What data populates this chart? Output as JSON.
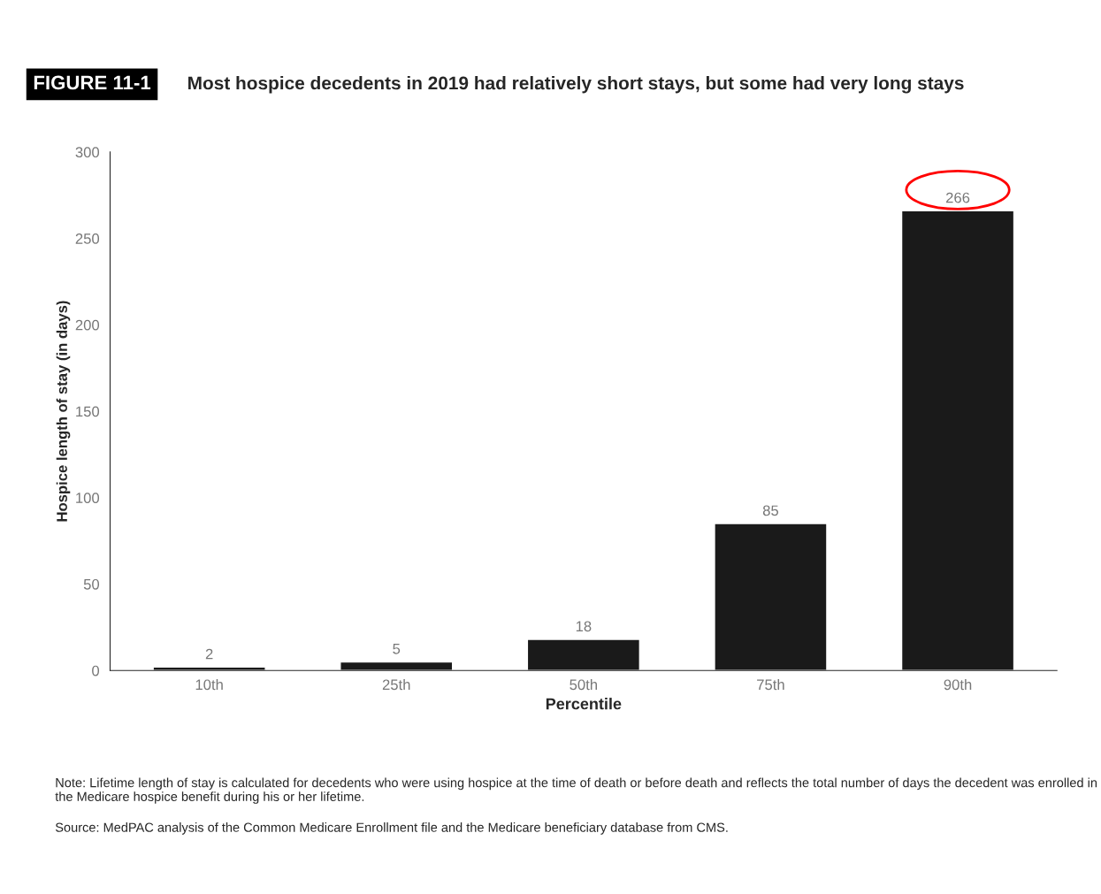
{
  "chart_data": {
    "type": "bar",
    "subtitle": "FIGURE 11-1",
    "title": "Most hospice decedents in 2019 had relatively short stays, but some had very long stays",
    "xlabel": "Percentile",
    "ylabel": "Hospice length of stay (in days)",
    "categories": [
      "10th",
      "25th",
      "50th",
      "75th",
      "90th"
    ],
    "values": [
      2,
      5,
      18,
      85,
      266
    ],
    "color": "#1a1a1a",
    "data_labels": true,
    "ylim": [
      0,
      300
    ],
    "yticks": [
      0,
      50,
      100,
      150,
      200,
      250,
      300
    ],
    "grid": false,
    "legend": false,
    "annotations": [
      "Note: Lifetime length of stay is calculated for decedents who were using hospice at the time of death or before death and reflects the total number of days the decedent was enrolled in the Medicare hospice benefit during his or her lifetime.",
      "Source: MedPAC analysis of the Common Medicare Enrollment file and the Medicare beneficiary database from CMS."
    ]
  }
}
